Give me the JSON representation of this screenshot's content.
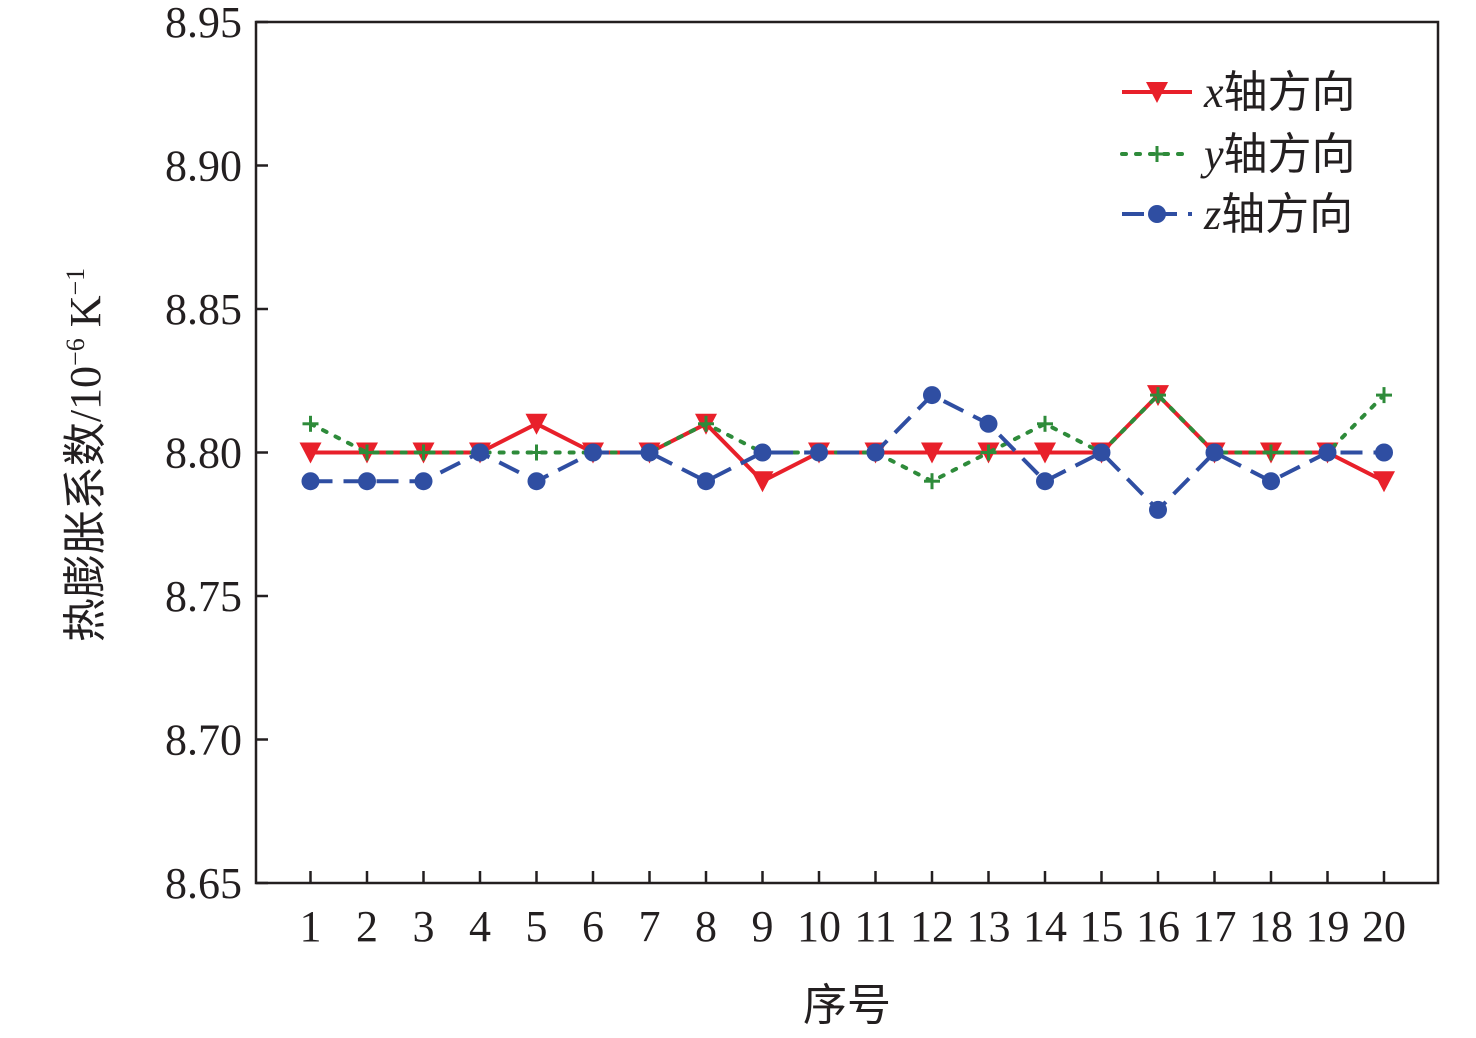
{
  "chart_data": {
    "type": "line",
    "xlabel": "序号",
    "ylabel": {
      "main": "热膨胀系数/10",
      "exp1": "−6",
      "unit": " K",
      "exp2": "−1"
    },
    "categories": [
      "1",
      "2",
      "3",
      "4",
      "5",
      "6",
      "7",
      "8",
      "9",
      "10",
      "11",
      "12",
      "13",
      "14",
      "15",
      "16",
      "17",
      "18",
      "19",
      "20"
    ],
    "ylim": [
      8.65,
      8.95
    ],
    "yticks": [
      "8.65",
      "8.70",
      "8.75",
      "8.80",
      "8.85",
      "8.90",
      "8.95"
    ],
    "grid": false,
    "legend_position": "top-right",
    "series": [
      {
        "key": "x",
        "name_var": "x",
        "name_text": "轴方向",
        "color": "#e8202a",
        "line_style": "solid",
        "marker": "triangle-down",
        "values": [
          8.8,
          8.8,
          8.8,
          8.8,
          8.81,
          8.8,
          8.8,
          8.81,
          8.79,
          8.8,
          8.8,
          8.8,
          8.8,
          8.8,
          8.8,
          8.82,
          8.8,
          8.8,
          8.8,
          8.79
        ]
      },
      {
        "key": "y",
        "name_var": "y",
        "name_text": "轴方向",
        "color": "#2e8b3a",
        "line_style": "dotted",
        "marker": "plus",
        "values": [
          8.81,
          8.8,
          8.8,
          8.8,
          8.8,
          8.8,
          8.8,
          8.81,
          8.8,
          8.8,
          8.8,
          8.79,
          8.8,
          8.81,
          8.8,
          8.82,
          8.8,
          8.8,
          8.8,
          8.82
        ]
      },
      {
        "key": "z",
        "name_var": "z",
        "name_text": "轴方向",
        "color": "#2f4ea2",
        "line_style": "dashed",
        "marker": "circle",
        "values": [
          8.79,
          8.79,
          8.79,
          8.8,
          8.79,
          8.8,
          8.8,
          8.79,
          8.8,
          8.8,
          8.8,
          8.82,
          8.81,
          8.79,
          8.8,
          8.78,
          8.8,
          8.79,
          8.8,
          8.8
        ]
      }
    ]
  }
}
